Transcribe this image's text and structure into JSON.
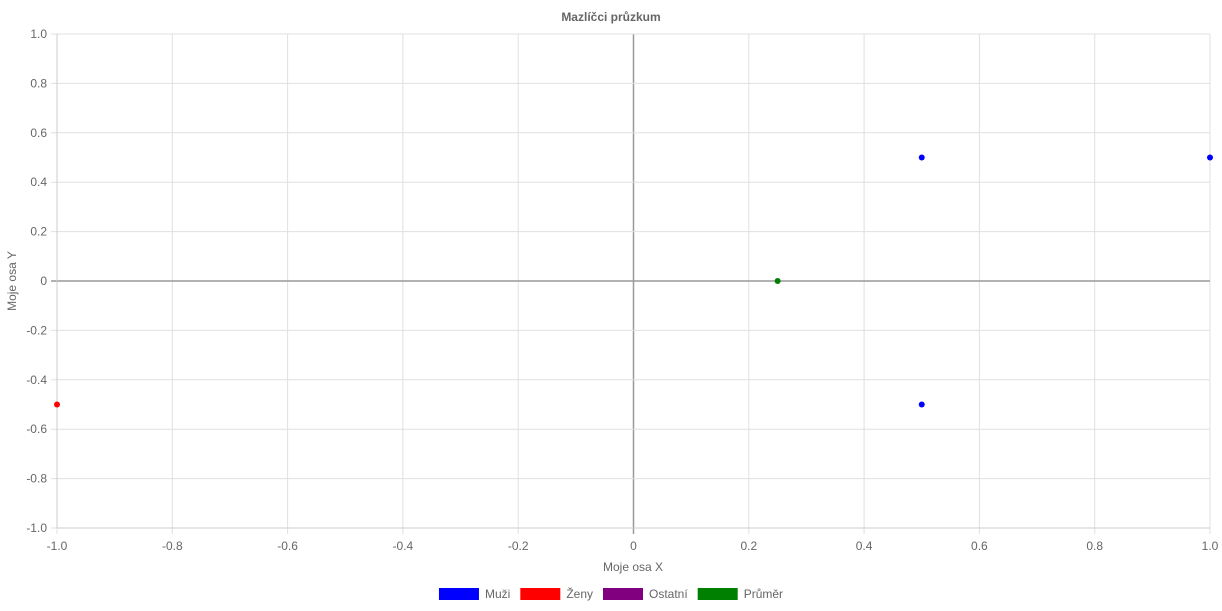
{
  "chart_data": {
    "type": "scatter",
    "title": "Mazlíčci průzkum",
    "xlabel": "Moje osa X",
    "ylabel": "Moje osa Y",
    "xlim": [
      -1,
      1
    ],
    "ylim": [
      -1,
      1
    ],
    "x_ticks": [
      "-1.0",
      "-0.8",
      "-0.6",
      "-0.4",
      "-0.2",
      "0",
      "0.2",
      "0.4",
      "0.6",
      "0.8",
      "1.0"
    ],
    "y_ticks": [
      "1.0",
      "0.8",
      "0.6",
      "0.4",
      "0.2",
      "0",
      "-0.2",
      "-0.4",
      "-0.6",
      "-0.8",
      "-1.0"
    ],
    "grid": true,
    "legend_position": "bottom",
    "series": [
      {
        "name": "Muži",
        "color": "#0000ff",
        "points": [
          [
            0.5,
            0.5
          ],
          [
            1.0,
            0.5
          ],
          [
            0.5,
            -0.5
          ]
        ]
      },
      {
        "name": "Ženy",
        "color": "#ff0000",
        "points": [
          [
            -1.0,
            -0.5
          ]
        ]
      },
      {
        "name": "Ostatní",
        "color": "#800080",
        "points": []
      },
      {
        "name": "Průměr",
        "color": "#008000",
        "points": [
          [
            0.25,
            0.0
          ]
        ]
      }
    ]
  }
}
